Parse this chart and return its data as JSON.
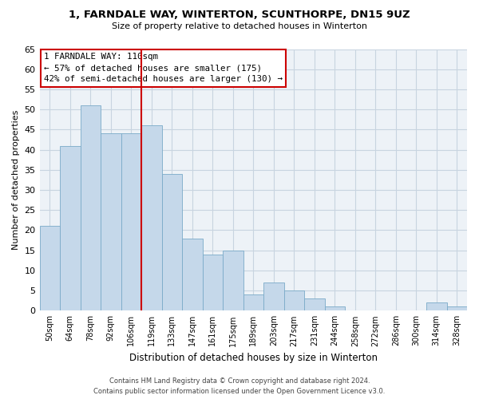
{
  "title": "1, FARNDALE WAY, WINTERTON, SCUNTHORPE, DN15 9UZ",
  "subtitle": "Size of property relative to detached houses in Winterton",
  "xlabel": "Distribution of detached houses by size in Winterton",
  "ylabel": "Number of detached properties",
  "categories": [
    "50sqm",
    "64sqm",
    "78sqm",
    "92sqm",
    "106sqm",
    "119sqm",
    "133sqm",
    "147sqm",
    "161sqm",
    "175sqm",
    "189sqm",
    "203sqm",
    "217sqm",
    "231sqm",
    "244sqm",
    "258sqm",
    "272sqm",
    "286sqm",
    "300sqm",
    "314sqm",
    "328sqm"
  ],
  "values": [
    21,
    41,
    51,
    44,
    44,
    46,
    34,
    18,
    14,
    15,
    4,
    7,
    5,
    3,
    1,
    0,
    0,
    0,
    0,
    2,
    1
  ],
  "bar_color": "#c5d8ea",
  "bar_edge_color": "#7aaac8",
  "marker_label": "1 FARNDALE WAY: 110sqm",
  "annotation_line1": "← 57% of detached houses are smaller (175)",
  "annotation_line2": "42% of semi-detached houses are larger (130) →",
  "annotation_box_color": "#ffffff",
  "annotation_box_edge": "#cc0000",
  "marker_line_color": "#cc0000",
  "ylim": [
    0,
    65
  ],
  "yticks": [
    0,
    5,
    10,
    15,
    20,
    25,
    30,
    35,
    40,
    45,
    50,
    55,
    60,
    65
  ],
  "grid_color": "#c8d4e0",
  "bg_color": "#edf2f7",
  "footer_line1": "Contains HM Land Registry data © Crown copyright and database right 2024.",
  "footer_line2": "Contains public sector information licensed under the Open Government Licence v3.0."
}
